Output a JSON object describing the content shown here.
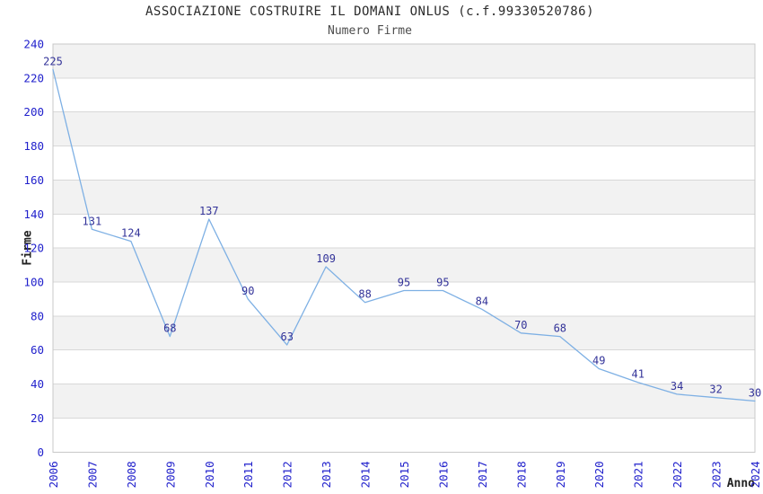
{
  "chart": {
    "title": "ASSOCIAZIONE COSTRUIRE IL DOMANI ONLUS (c.f.99330520786)",
    "subtitle": "Numero Firme",
    "ylabel": "Firme",
    "xlabel": "Anno"
  },
  "chart_data": {
    "type": "line",
    "title": "ASSOCIAZIONE COSTRUIRE IL DOMANI ONLUS (c.f.99330520786)",
    "subtitle": "Numero Firme",
    "xlabel": "Anno",
    "ylabel": "Firme",
    "categories": [
      "2006",
      "2007",
      "2008",
      "2009",
      "2010",
      "2011",
      "2012",
      "2013",
      "2014",
      "2015",
      "2016",
      "2017",
      "2018",
      "2019",
      "2020",
      "2021",
      "2022",
      "2023",
      "2024"
    ],
    "values": [
      225,
      131,
      124,
      68,
      137,
      90,
      63,
      109,
      88,
      95,
      95,
      84,
      70,
      68,
      49,
      41,
      34,
      32,
      30
    ],
    "ylim": [
      0,
      240
    ],
    "ytick_step": 20,
    "grid": "horizontal",
    "legend": "none",
    "show_point_labels": true,
    "colors": {
      "line": "#7EB0E4",
      "data_label": "#333399",
      "tick_label": "#2121CC",
      "band_fill": "#F2F2F2",
      "band_alt_fill": "#FFFFFF",
      "gridline": "#D8D8D8",
      "plot_border": "#C8C8C8",
      "title_text": "#2B2B2B",
      "subtitle_text": "#4D4D4D",
      "axis_title_text": "#222222"
    }
  }
}
